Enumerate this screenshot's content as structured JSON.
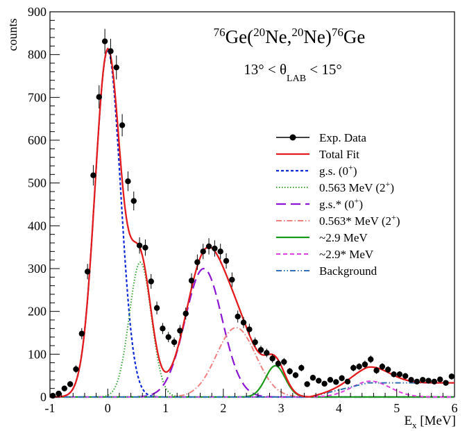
{
  "chart_data": {
    "type": "scatter",
    "title_parts": {
      "a_mass": "76",
      "a_elem": "Ge(",
      "b_mass": "20",
      "b_elem": "Ne,",
      "c_mass": "20",
      "c_elem": "Ne)",
      "d_mass": "76",
      "d_elem": "Ge"
    },
    "subtitle_parts": {
      "pre": "13° < θ",
      "sub": "LAB",
      "post": " < 15°"
    },
    "xlabel_parts": {
      "pre": "E",
      "sub": "x",
      "post": " [MeV]"
    },
    "ylabel": "counts",
    "xlim": [
      -1,
      6
    ],
    "ylim": [
      0,
      900
    ],
    "x_ticks": [
      -1,
      0,
      1,
      2,
      3,
      4,
      5,
      6
    ],
    "y_ticks": [
      0,
      100,
      200,
      300,
      400,
      500,
      600,
      700,
      800,
      900
    ],
    "grid": false,
    "legend_position": "right",
    "legend": [
      {
        "key": "data",
        "pre": "Exp. Data"
      },
      {
        "key": "total",
        "pre": "Total Fit"
      },
      {
        "key": "gs",
        "pre": "g.s. (0",
        "sup": "+",
        "post": ")"
      },
      {
        "key": "e563",
        "pre": "0.563 MeV (2",
        "sup": "+",
        "post": ")"
      },
      {
        "key": "gss",
        "pre": "g.s.* (0",
        "sup": "+",
        "post": ")"
      },
      {
        "key": "e563s",
        "pre": "0.563* MeV (2",
        "sup": "+",
        "post": ")"
      },
      {
        "key": "e29",
        "pre": "~2.9 MeV"
      },
      {
        "key": "e29s",
        "pre": "~2.9* MeV"
      },
      {
        "key": "bg",
        "pre": "Background"
      }
    ],
    "series_colors": {
      "data": "#000000",
      "total": "#e41a1c",
      "gs": "#0b28d8",
      "e563": "#33a533",
      "gss": "#8d16d6",
      "e563s": "#f08080",
      "e29": "#1a9a1a",
      "e29s": "#e040e0",
      "bg": "#2f6fb5"
    },
    "data_points": [
      {
        "x": -0.95,
        "y": 3,
        "err": 3
      },
      {
        "x": -0.85,
        "y": 8,
        "err": 4
      },
      {
        "x": -0.75,
        "y": 20,
        "err": 6
      },
      {
        "x": -0.65,
        "y": 30,
        "err": 7
      },
      {
        "x": -0.55,
        "y": 65,
        "err": 9
      },
      {
        "x": -0.45,
        "y": 148,
        "err": 13
      },
      {
        "x": -0.35,
        "y": 293,
        "err": 18
      },
      {
        "x": -0.25,
        "y": 518,
        "err": 24
      },
      {
        "x": -0.15,
        "y": 701,
        "err": 27
      },
      {
        "x": -0.05,
        "y": 831,
        "err": 29
      },
      {
        "x": 0.05,
        "y": 808,
        "err": 29
      },
      {
        "x": 0.15,
        "y": 770,
        "err": 28
      },
      {
        "x": 0.25,
        "y": 635,
        "err": 26
      },
      {
        "x": 0.35,
        "y": 504,
        "err": 23
      },
      {
        "x": 0.45,
        "y": 458,
        "err": 22
      },
      {
        "x": 0.55,
        "y": 354,
        "err": 19
      },
      {
        "x": 0.65,
        "y": 349,
        "err": 19
      },
      {
        "x": 0.75,
        "y": 270,
        "err": 17
      },
      {
        "x": 0.85,
        "y": 208,
        "err": 15
      },
      {
        "x": 0.95,
        "y": 160,
        "err": 13
      },
      {
        "x": 1.05,
        "y": 140,
        "err": 12
      },
      {
        "x": 1.15,
        "y": 128,
        "err": 11
      },
      {
        "x": 1.25,
        "y": 155,
        "err": 13
      },
      {
        "x": 1.35,
        "y": 195,
        "err": 14
      },
      {
        "x": 1.45,
        "y": 272,
        "err": 17
      },
      {
        "x": 1.55,
        "y": 315,
        "err": 18
      },
      {
        "x": 1.65,
        "y": 340,
        "err": 18
      },
      {
        "x": 1.75,
        "y": 352,
        "err": 19
      },
      {
        "x": 1.85,
        "y": 347,
        "err": 19
      },
      {
        "x": 1.95,
        "y": 340,
        "err": 18
      },
      {
        "x": 2.05,
        "y": 318,
        "err": 18
      },
      {
        "x": 2.15,
        "y": 274,
        "err": 17
      },
      {
        "x": 2.25,
        "y": 188,
        "err": 14
      },
      {
        "x": 2.35,
        "y": 174,
        "err": 13
      },
      {
        "x": 2.45,
        "y": 158,
        "err": 13
      },
      {
        "x": 2.55,
        "y": 128,
        "err": 11
      },
      {
        "x": 2.65,
        "y": 110,
        "err": 10
      },
      {
        "x": 2.75,
        "y": 103,
        "err": 10
      },
      {
        "x": 2.85,
        "y": 90,
        "err": 10
      },
      {
        "x": 2.95,
        "y": 78,
        "err": 9
      },
      {
        "x": 3.05,
        "y": 82,
        "err": 9
      },
      {
        "x": 3.15,
        "y": 60,
        "err": 8
      },
      {
        "x": 3.25,
        "y": 51,
        "err": 7
      },
      {
        "x": 3.35,
        "y": 68,
        "err": 8
      },
      {
        "x": 3.45,
        "y": 30,
        "err": 6
      },
      {
        "x": 3.55,
        "y": 45,
        "err": 7
      },
      {
        "x": 3.65,
        "y": 38,
        "err": 6
      },
      {
        "x": 3.75,
        "y": 31,
        "err": 6
      },
      {
        "x": 3.85,
        "y": 40,
        "err": 6
      },
      {
        "x": 3.95,
        "y": 35,
        "err": 6
      },
      {
        "x": 4.05,
        "y": 44,
        "err": 7
      },
      {
        "x": 4.15,
        "y": 36,
        "err": 6
      },
      {
        "x": 4.25,
        "y": 68,
        "err": 8
      },
      {
        "x": 4.35,
        "y": 71,
        "err": 8
      },
      {
        "x": 4.45,
        "y": 76,
        "err": 9
      },
      {
        "x": 4.55,
        "y": 88,
        "err": 9
      },
      {
        "x": 4.65,
        "y": 62,
        "err": 8
      },
      {
        "x": 4.75,
        "y": 71,
        "err": 8
      },
      {
        "x": 4.85,
        "y": 64,
        "err": 8
      },
      {
        "x": 4.95,
        "y": 53,
        "err": 7
      },
      {
        "x": 5.05,
        "y": 53,
        "err": 7
      },
      {
        "x": 5.15,
        "y": 49,
        "err": 7
      },
      {
        "x": 5.25,
        "y": 40,
        "err": 6
      },
      {
        "x": 5.35,
        "y": 36,
        "err": 6
      },
      {
        "x": 5.45,
        "y": 40,
        "err": 6
      },
      {
        "x": 5.55,
        "y": 38,
        "err": 6
      },
      {
        "x": 5.65,
        "y": 36,
        "err": 6
      },
      {
        "x": 5.75,
        "y": 41,
        "err": 6
      },
      {
        "x": 5.85,
        "y": 33,
        "err": 6
      },
      {
        "x": 5.95,
        "y": 48,
        "err": 7
      }
    ],
    "components": [
      {
        "key": "gs",
        "type": "gauss",
        "center": 0.0,
        "sigma": 0.22,
        "amp": 810
      },
      {
        "key": "e563",
        "type": "gauss",
        "center": 0.563,
        "sigma": 0.19,
        "amp": 315
      },
      {
        "key": "gss",
        "type": "gauss",
        "center": 1.66,
        "sigma": 0.32,
        "amp": 300
      },
      {
        "key": "e563s",
        "type": "gauss",
        "center": 2.22,
        "sigma": 0.34,
        "amp": 162
      },
      {
        "key": "e29",
        "type": "gauss",
        "center": 2.9,
        "sigma": 0.17,
        "amp": 73
      },
      {
        "key": "e29s",
        "type": "gauss",
        "center": 4.55,
        "sigma": 0.33,
        "amp": 37
      },
      {
        "key": "bg",
        "type": "ramp",
        "x_start": 3.5,
        "x_end": 4.5,
        "y_end": 33
      }
    ]
  }
}
